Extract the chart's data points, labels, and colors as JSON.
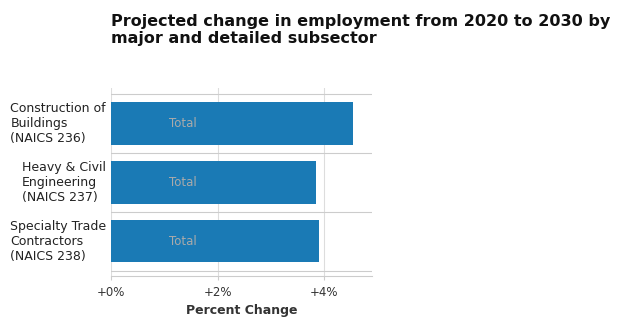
{
  "title_line1": "Projected change in employment from 2020 to 2030 by",
  "title_line2": "major and detailed subsector",
  "categories": [
    "Construction of\nBuildings\n(NAICS 236)",
    "Heavy & Civil\nEngineering\n(NAICS 237)",
    "Specialty Trade\nContractors\n(NAICS 238)"
  ],
  "sublabels": [
    "Total",
    "Total",
    "Total"
  ],
  "values": [
    4.55,
    3.85,
    3.9
  ],
  "bar_color": "#1a7ab5",
  "xlabel": "Percent Change",
  "xlim": [
    0,
    4.9
  ],
  "xticks": [
    0,
    2,
    4
  ],
  "xticklabels": [
    "+0%",
    "+2%",
    "+4%"
  ],
  "background_color": "#ffffff",
  "title_fontsize": 11.5,
  "label_fontsize": 9,
  "sublabel_color": "#aaaaaa",
  "bar_height": 0.72,
  "separator_color": "#cccccc",
  "grid_color": "#dddddd"
}
